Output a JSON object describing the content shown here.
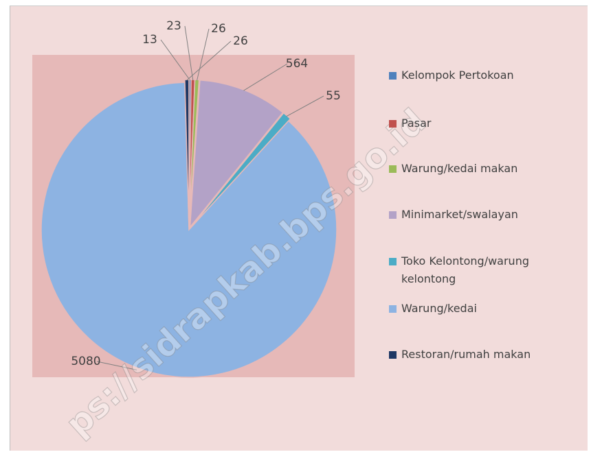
{
  "chart_data": {
    "type": "pie",
    "categories": [
      "Kelompok Pertokoan",
      "Pasar",
      "Warung/kedai makan",
      "Minimarket/swalayan",
      "Toko Kelontong/warung kelontong",
      "Warung/kedai",
      "Restoran/rumah makan"
    ],
    "values": [
      13,
      23,
      26,
      564,
      55,
      5080,
      26
    ],
    "colors": [
      "#4f81bd",
      "#c0504d",
      "#9bbb59",
      "#b3a2c7",
      "#4bacc6",
      "#8db3e2",
      "#1f3864"
    ],
    "legend": "right",
    "watermark": "ps://sidrapkab.bps.go.id"
  }
}
